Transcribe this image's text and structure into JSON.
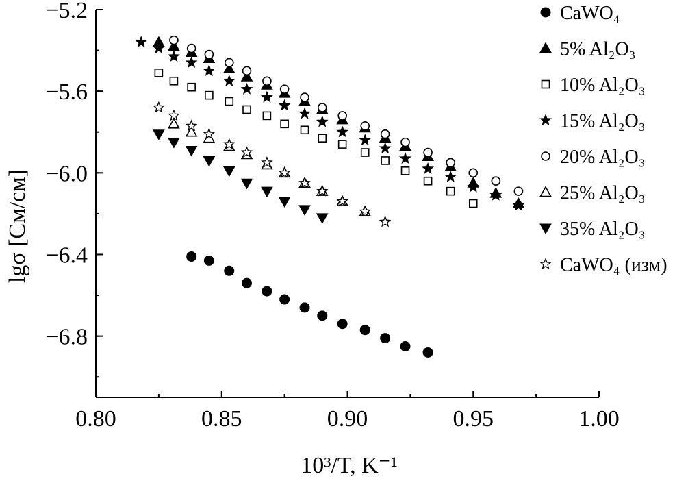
{
  "chart_data": {
    "type": "scatter",
    "xlabel": "10³/T, K⁻¹",
    "ylabel": "lgσ [См/см]",
    "xlim": [
      0.8,
      1.0
    ],
    "ylim": [
      -7.1,
      -5.2
    ],
    "xticks": [
      "0.80",
      "0.85",
      "0.90",
      "0.95",
      "1.00"
    ],
    "yticks": [
      "−5.2",
      "−5.6",
      "−6.0",
      "−6.4",
      "−6.8"
    ],
    "legend_position": "top-right",
    "series": [
      {
        "name": "CaWO₄",
        "marker": "circle-filled",
        "x": [
          0.838,
          0.845,
          0.853,
          0.86,
          0.868,
          0.875,
          0.883,
          0.89,
          0.898,
          0.907,
          0.915,
          0.923,
          0.932
        ],
        "y": [
          -6.41,
          -6.43,
          -6.48,
          -6.54,
          -6.58,
          -6.62,
          -6.66,
          -6.7,
          -6.74,
          -6.77,
          -6.81,
          -6.85,
          -6.88
        ]
      },
      {
        "name": "5% Al₂O₃",
        "marker": "triangle-up-filled",
        "x": [
          0.825,
          0.831,
          0.838,
          0.845,
          0.853,
          0.86,
          0.868,
          0.875,
          0.883,
          0.89,
          0.898,
          0.907,
          0.915,
          0.923,
          0.932,
          0.941,
          0.95,
          0.959,
          0.968
        ],
        "y": [
          -5.36,
          -5.38,
          -5.41,
          -5.44,
          -5.49,
          -5.53,
          -5.57,
          -5.61,
          -5.65,
          -5.69,
          -5.74,
          -5.78,
          -5.83,
          -5.87,
          -5.92,
          -5.97,
          -6.05,
          -6.1,
          -6.15
        ]
      },
      {
        "name": "10% Al₂O₃",
        "marker": "square-open",
        "x": [
          0.825,
          0.831,
          0.838,
          0.845,
          0.853,
          0.86,
          0.868,
          0.875,
          0.883,
          0.89,
          0.898,
          0.907,
          0.915,
          0.923,
          0.932,
          0.941,
          0.95
        ],
        "y": [
          -5.51,
          -5.55,
          -5.58,
          -5.62,
          -5.65,
          -5.69,
          -5.72,
          -5.76,
          -5.79,
          -5.83,
          -5.86,
          -5.9,
          -5.94,
          -5.99,
          -6.04,
          -6.09,
          -6.15
        ]
      },
      {
        "name": "15% Al₂O₃",
        "marker": "star-filled",
        "x": [
          0.818,
          0.825,
          0.831,
          0.838,
          0.845,
          0.853,
          0.86,
          0.868,
          0.875,
          0.883,
          0.89,
          0.898,
          0.907,
          0.915,
          0.923,
          0.932,
          0.941,
          0.95,
          0.959,
          0.968
        ],
        "y": [
          -5.36,
          -5.39,
          -5.43,
          -5.46,
          -5.5,
          -5.55,
          -5.59,
          -5.63,
          -5.67,
          -5.71,
          -5.75,
          -5.8,
          -5.84,
          -5.88,
          -5.93,
          -5.98,
          -6.02,
          -6.07,
          -6.11,
          -6.16
        ]
      },
      {
        "name": "20% Al₂O₃",
        "marker": "circle-open",
        "x": [
          0.831,
          0.838,
          0.845,
          0.853,
          0.86,
          0.868,
          0.875,
          0.883,
          0.89,
          0.898,
          0.907,
          0.915,
          0.923,
          0.932,
          0.941,
          0.95,
          0.959,
          0.968
        ],
        "y": [
          -5.35,
          -5.39,
          -5.42,
          -5.46,
          -5.5,
          -5.55,
          -5.59,
          -5.63,
          -5.68,
          -5.72,
          -5.77,
          -5.81,
          -5.85,
          -5.9,
          -5.95,
          -6.0,
          -6.04,
          -6.09
        ]
      },
      {
        "name": "25% Al₂O₃",
        "marker": "triangle-up-open",
        "x": [
          0.831,
          0.838,
          0.845,
          0.853,
          0.86,
          0.868,
          0.875,
          0.883,
          0.89,
          0.898,
          0.907
        ],
        "y": [
          -5.76,
          -5.8,
          -5.83,
          -5.87,
          -5.91,
          -5.96,
          -6.0,
          -6.05,
          -6.09,
          -6.14,
          -6.19
        ]
      },
      {
        "name": "35% Al₂O₃",
        "marker": "triangle-down-filled",
        "x": [
          0.825,
          0.831,
          0.838,
          0.845,
          0.853,
          0.86,
          0.868,
          0.875,
          0.883,
          0.89
        ],
        "y": [
          -5.81,
          -5.85,
          -5.89,
          -5.94,
          -5.99,
          -6.05,
          -6.09,
          -6.14,
          -6.18,
          -6.22
        ]
      },
      {
        "name": "CaWO₄ (изм)",
        "marker": "star-open",
        "x": [
          0.825,
          0.831,
          0.838,
          0.845,
          0.853,
          0.86,
          0.868,
          0.875,
          0.883,
          0.89,
          0.898,
          0.907,
          0.915
        ],
        "y": [
          -5.68,
          -5.72,
          -5.77,
          -5.81,
          -5.86,
          -5.9,
          -5.95,
          -6.0,
          -6.05,
          -6.09,
          -6.14,
          -6.19,
          -6.24
        ]
      }
    ]
  }
}
